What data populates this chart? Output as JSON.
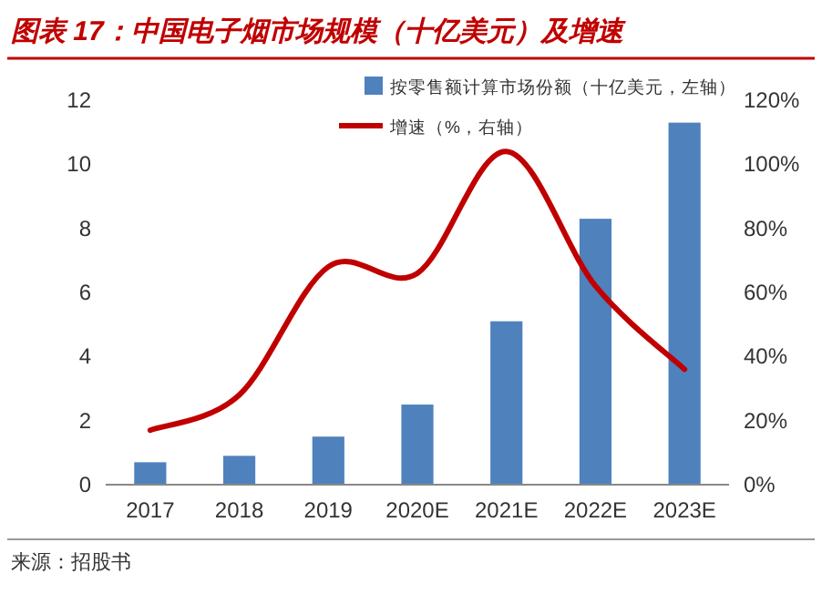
{
  "chart_data": {
    "type": "bar",
    "title": "图表 17：中国电子烟市场规模（十亿美元）及增速",
    "categories": [
      "2017",
      "2018",
      "2019",
      "2020E",
      "2021E",
      "2022E",
      "2023E"
    ],
    "series": [
      {
        "name": "按零售额计算市场份额（十亿美元，左轴）",
        "color": "#4f81bd",
        "values": [
          0.7,
          0.9,
          1.5,
          2.5,
          5.1,
          8.3,
          11.3
        ]
      },
      {
        "name": "增速（%，右轴）",
        "type": "line",
        "axis": "y2",
        "color": "#c00000",
        "values": [
          17,
          28,
          68,
          66,
          104,
          62,
          36
        ]
      }
    ],
    "ylim": [
      0,
      12
    ],
    "yticks": [
      0,
      2,
      4,
      6,
      8,
      10,
      12
    ],
    "y2lim": [
      0,
      120
    ],
    "y2ticks": [
      {
        "value": 0,
        "label": "0%"
      },
      {
        "value": 20,
        "label": "20%"
      },
      {
        "value": 40,
        "label": "40%"
      },
      {
        "value": 60,
        "label": "60%"
      },
      {
        "value": 80,
        "label": "80%"
      },
      {
        "value": 100,
        "label": "100%"
      },
      {
        "value": 120,
        "label": "120%"
      }
    ],
    "legend": "top right",
    "annotations": [
      "来源：招股书"
    ]
  }
}
